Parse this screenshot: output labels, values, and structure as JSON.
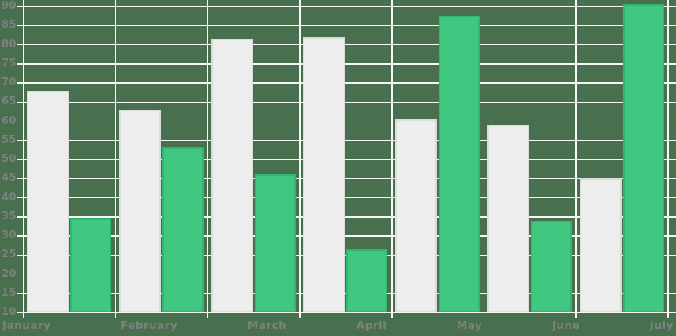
{
  "chart_data": {
    "type": "bar",
    "title": "",
    "categories": [
      "January",
      "February",
      "March",
      "April",
      "May",
      "June",
      "July"
    ],
    "series": [
      {
        "name": "light-gray-series",
        "color": "#ededed",
        "border_color": "#dcdcdc",
        "values": [
          68,
          63,
          81.5,
          82,
          60.5,
          59,
          45
        ]
      },
      {
        "name": "green-series",
        "color": "#40c881",
        "border_color": "#2eb873",
        "values": [
          34.5,
          53,
          46,
          26.5,
          87.5,
          34,
          90.7
        ]
      }
    ],
    "y_tick_labels": [
      "90",
      "85",
      "80",
      "75",
      "70",
      "65",
      "60",
      "55",
      "50",
      "45",
      "40",
      "35",
      "30",
      "25",
      "20",
      "15",
      "10"
    ],
    "y_ticks": [
      90,
      85,
      80,
      75,
      70,
      65,
      60,
      55,
      50,
      45,
      40,
      35,
      30,
      25,
      20,
      15,
      10
    ],
    "ylim": [
      10,
      91.6
    ],
    "grid": true,
    "legend": null,
    "colors": {
      "background": "#48704e",
      "gridline": "#f6f8f6",
      "axis_label": "#7a827b"
    }
  }
}
